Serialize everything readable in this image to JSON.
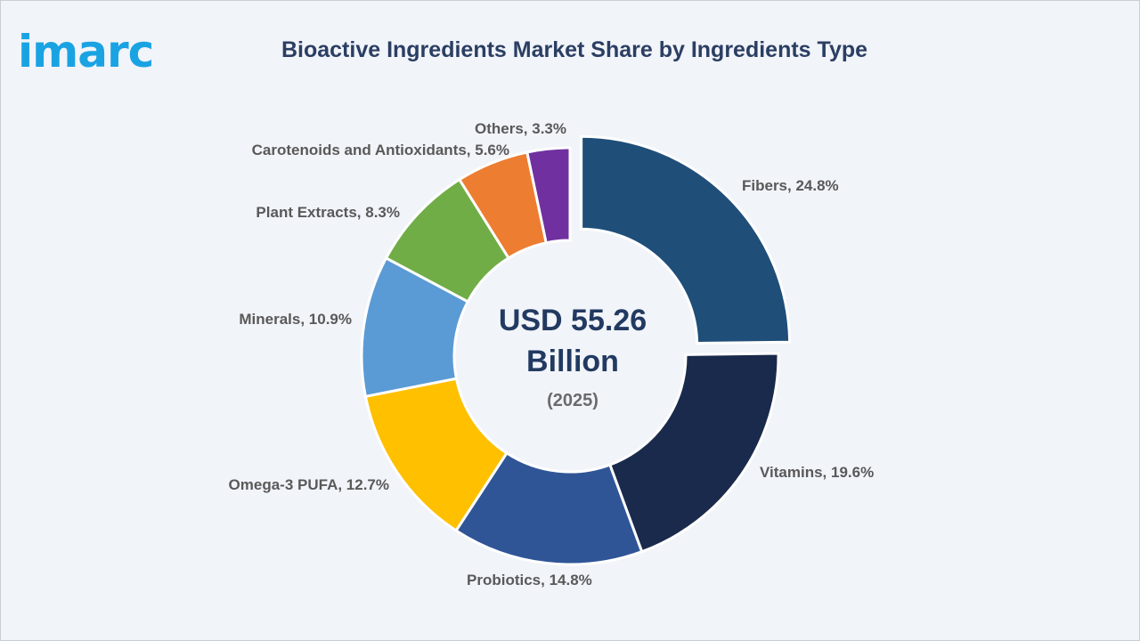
{
  "brand": {
    "logo_text": "imarc"
  },
  "chart_data": {
    "type": "pie",
    "title": "Bioactive Ingredients Market Share by Ingredients Type",
    "unit": "%",
    "center_value": "USD 55.26 Billion",
    "center_value_line1": "USD 55.26",
    "center_value_line2": "Billion",
    "center_year": "(2025)",
    "slices": [
      {
        "label": "Fibers",
        "value": 24.8,
        "display": "Fibers, 24.8%",
        "color": "#1f4e79",
        "exploded": true
      },
      {
        "label": "Vitamins",
        "value": 19.6,
        "display": "Vitamins, 19.6%",
        "color": "#1a2a4c",
        "exploded": false
      },
      {
        "label": "Probiotics",
        "value": 14.8,
        "display": "Probiotics, 14.8%",
        "color": "#2f5597",
        "exploded": false
      },
      {
        "label": "Omega-3 PUFA",
        "value": 12.7,
        "display": "Omega-3 PUFA, 12.7%",
        "color": "#ffc000",
        "exploded": false
      },
      {
        "label": "Minerals",
        "value": 10.9,
        "display": "Minerals, 10.9%",
        "color": "#5b9bd5",
        "exploded": false
      },
      {
        "label": "Plant Extracts",
        "value": 8.3,
        "display": "Plant Extracts, 8.3%",
        "color": "#70ad47",
        "exploded": false
      },
      {
        "label": "Carotenoids and Antioxidants",
        "value": 5.6,
        "display": "Carotenoids and Antioxidants, 5.6%",
        "color": "#ed7d31",
        "exploded": false
      },
      {
        "label": "Others",
        "value": 3.3,
        "display": "Others, 3.3%",
        "color": "#7030a0",
        "exploded": false
      }
    ]
  }
}
